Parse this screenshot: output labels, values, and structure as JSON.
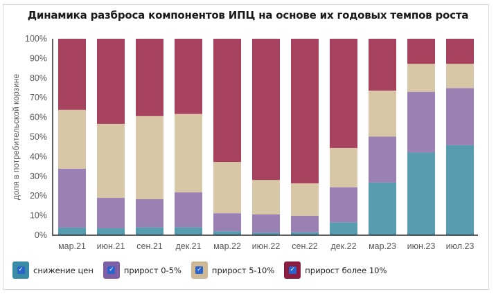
{
  "chart_data": {
    "type": "bar",
    "stacked": "percent",
    "title": "Динамика разброса компонентов ИПЦ на основе их годовых темпов роста",
    "xlabel": "",
    "ylabel": "доля в потребительской корзине",
    "ylim": [
      0,
      100
    ],
    "yticks": [
      "0%",
      "10%",
      "20%",
      "30%",
      "40%",
      "50%",
      "60%",
      "70%",
      "80%",
      "90%",
      "100%"
    ],
    "grid": false,
    "legend_position": "bottom-left",
    "categories": [
      "мар.21",
      "июн.21",
      "сен.21",
      "дек.21",
      "мар.22",
      "июн.22",
      "сен.22",
      "дек.22",
      "мар.23",
      "июн.23",
      "июл.23"
    ],
    "series": [
      {
        "name": "снижение цен",
        "color": "#589cb0",
        "values": [
          3.9,
          3.5,
          4.0,
          4.0,
          2.0,
          1.2,
          1.5,
          6.6,
          26.8,
          42.1,
          45.8
        ]
      },
      {
        "name": "прирост 0-5%",
        "color": "#9a81b4",
        "values": [
          29.9,
          15.5,
          14.3,
          17.8,
          9.2,
          9.4,
          8.4,
          17.8,
          23.4,
          30.9,
          29.1
        ]
      },
      {
        "name": "прирост 5-10%",
        "color": "#d8c7a7",
        "values": [
          30.0,
          37.7,
          42.3,
          39.9,
          26.1,
          17.5,
          16.5,
          20.0,
          23.4,
          14.2,
          12.3
        ]
      },
      {
        "name": "прирост более 10%",
        "color": "#a8435f",
        "values": [
          36.2,
          43.3,
          39.4,
          38.3,
          62.7,
          71.9,
          73.6,
          55.6,
          26.4,
          12.8,
          12.8
        ]
      }
    ]
  },
  "legend": {
    "items": [
      {
        "label": "снижение цен",
        "swatch_color": "#3a8ba6"
      },
      {
        "label": "прирост 0-5%",
        "swatch_color": "#7e5fa6"
      },
      {
        "label": "прирост 5-10%",
        "swatch_color": "#cdb998"
      },
      {
        "label": "прирост более 10%",
        "swatch_color": "#8b1e40"
      }
    ]
  }
}
